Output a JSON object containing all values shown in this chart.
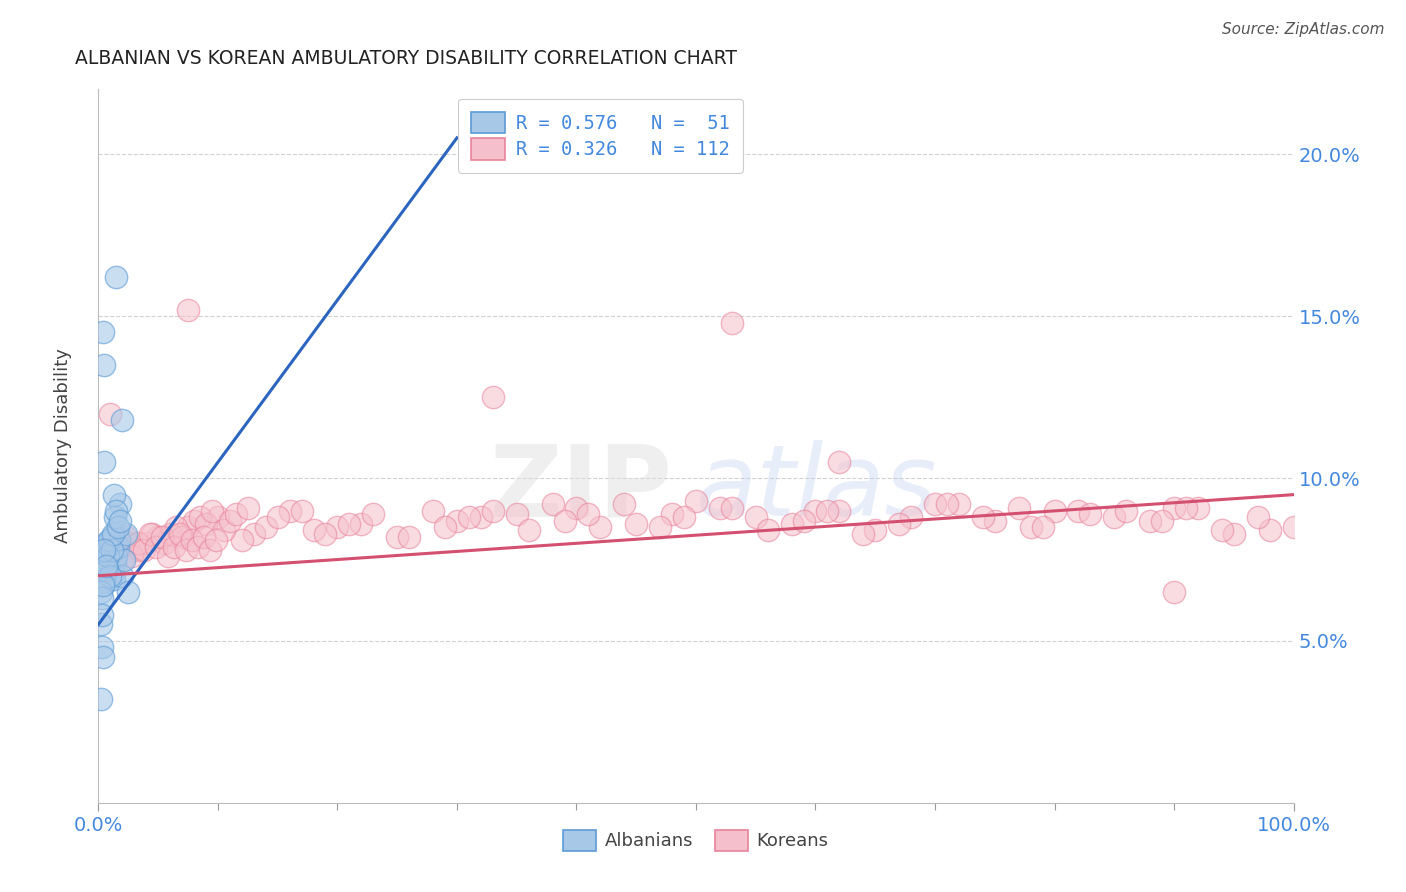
{
  "title": "ALBANIAN VS KOREAN AMBULATORY DISABILITY CORRELATION CHART",
  "source": "Source: ZipAtlas.com",
  "ylabel": "Ambulatory Disability",
  "watermark_zip": "ZIP",
  "watermark_atlas": "atlas",
  "legend_r_albanian": "R = 0.576",
  "legend_n_albanian": "N =  51",
  "legend_r_korean": "R = 0.326",
  "legend_n_korean": "N = 112",
  "albanian_color": "#A8C8E8",
  "albanian_edge_color": "#5B9BD5",
  "albanian_line_color": "#2B65C0",
  "korean_color": "#F5C0CB",
  "korean_edge_color": "#E8829A",
  "korean_line_color": "#D45070",
  "albanian_scatter_x": [
    0.3,
    0.5,
    0.6,
    0.7,
    0.8,
    0.9,
    1.0,
    1.1,
    1.2,
    1.3,
    1.4,
    1.5,
    1.6,
    1.7,
    1.8,
    2.0,
    2.1,
    2.3,
    2.5,
    0.4,
    0.3,
    0.3,
    0.4,
    0.5,
    0.6,
    0.7,
    0.8,
    0.9,
    1.0,
    1.1,
    1.2,
    1.3,
    1.4,
    1.5,
    1.6,
    0.2,
    0.3,
    0.4,
    0.5,
    0.6,
    0.2,
    0.3,
    0.4,
    0.5,
    1.5,
    0.3,
    0.4,
    0.2,
    0.5,
    2.0,
    1.8
  ],
  "albanian_scatter_y": [
    7.8,
    7.2,
    6.8,
    7.5,
    8.0,
    7.3,
    7.8,
    8.2,
    7.1,
    6.9,
    7.4,
    7.6,
    7.9,
    8.1,
    9.2,
    7.0,
    7.5,
    8.3,
    6.5,
    7.7,
    6.8,
    7.1,
    7.4,
    6.9,
    8.0,
    7.2,
    7.6,
    8.1,
    7.0,
    7.8,
    8.3,
    9.5,
    8.8,
    9.0,
    8.5,
    6.5,
    6.3,
    6.7,
    7.8,
    7.3,
    5.5,
    5.8,
    14.5,
    13.5,
    16.2,
    4.8,
    4.5,
    3.2,
    10.5,
    11.8,
    8.7
  ],
  "korean_scatter_x": [
    1.5,
    3.0,
    5.0,
    7.5,
    10.0,
    13.0,
    16.0,
    20.0,
    25.0,
    30.0,
    35.0,
    40.0,
    45.0,
    50.0,
    55.0,
    60.0,
    65.0,
    70.0,
    75.0,
    80.0,
    85.0,
    90.0,
    95.0,
    100.0,
    2.0,
    4.0,
    6.0,
    8.0,
    12.0,
    18.0,
    22.0,
    28.0,
    32.0,
    38.0,
    42.0,
    48.0,
    52.0,
    58.0,
    62.0,
    68.0,
    72.0,
    78.0,
    82.0,
    88.0,
    92.0,
    98.0,
    0.5,
    1.0,
    2.5,
    3.5,
    4.5,
    5.5,
    6.5,
    7.0,
    8.5,
    9.0,
    9.5,
    10.5,
    11.0,
    11.5,
    12.5,
    14.0,
    15.0,
    17.0,
    19.0,
    21.0,
    23.0,
    26.0,
    29.0,
    31.0,
    33.0,
    36.0,
    39.0,
    41.0,
    44.0,
    47.0,
    49.0,
    53.0,
    56.0,
    59.0,
    61.0,
    64.0,
    67.0,
    71.0,
    74.0,
    77.0,
    79.0,
    83.0,
    86.0,
    89.0,
    91.0,
    94.0,
    97.0,
    0.8,
    1.2,
    1.8,
    2.3,
    2.8,
    3.3,
    3.8,
    4.3,
    4.8,
    5.3,
    5.8,
    6.3,
    6.8,
    7.3,
    7.8,
    8.3,
    8.8,
    9.3,
    9.8
  ],
  "korean_scatter_y": [
    8.0,
    7.8,
    8.2,
    8.5,
    8.8,
    8.3,
    9.0,
    8.5,
    8.2,
    8.7,
    8.9,
    9.1,
    8.6,
    9.3,
    8.8,
    9.0,
    8.4,
    9.2,
    8.7,
    9.0,
    8.8,
    9.1,
    8.3,
    8.5,
    7.5,
    8.0,
    8.3,
    8.7,
    8.1,
    8.4,
    8.6,
    9.0,
    8.8,
    9.2,
    8.5,
    8.9,
    9.1,
    8.6,
    9.0,
    8.8,
    9.2,
    8.5,
    9.0,
    8.7,
    9.1,
    8.4,
    7.2,
    7.6,
    8.0,
    7.8,
    8.3,
    8.0,
    8.5,
    8.2,
    8.8,
    8.6,
    9.0,
    8.4,
    8.7,
    8.9,
    9.1,
    8.5,
    8.8,
    9.0,
    8.3,
    8.6,
    8.9,
    8.2,
    8.5,
    8.8,
    9.0,
    8.4,
    8.7,
    8.9,
    9.2,
    8.5,
    8.8,
    9.1,
    8.4,
    8.7,
    9.0,
    8.3,
    8.6,
    9.2,
    8.8,
    9.1,
    8.5,
    8.9,
    9.0,
    8.7,
    9.1,
    8.4,
    8.8,
    7.4,
    7.7,
    7.9,
    8.2,
    7.6,
    8.0,
    7.8,
    8.3,
    7.9,
    8.2,
    7.6,
    7.9,
    8.3,
    7.8,
    8.1,
    7.9,
    8.2,
    7.8,
    8.1
  ],
  "extra_korean_x": [
    53.0,
    7.5,
    1.0,
    33.0,
    62.0,
    90.0
  ],
  "extra_korean_y": [
    14.8,
    15.2,
    12.0,
    12.5,
    10.5,
    6.5
  ],
  "xmin": 0,
  "xmax": 100,
  "ymin": 0,
  "ymax": 22,
  "ytick_positions": [
    5.0,
    10.0,
    15.0,
    20.0
  ],
  "ytick_labels": [
    "5.0%",
    "10.0%",
    "15.0%",
    "20.0%"
  ],
  "grid_color": "#cccccc",
  "background_color": "#ffffff",
  "alb_line_x0": 0.0,
  "alb_line_x1": 30.0,
  "alb_line_y0": 5.5,
  "alb_line_y1": 20.5,
  "kor_line_x0": 0.0,
  "kor_line_x1": 100.0,
  "kor_line_y0": 7.0,
  "kor_line_y1": 9.5
}
